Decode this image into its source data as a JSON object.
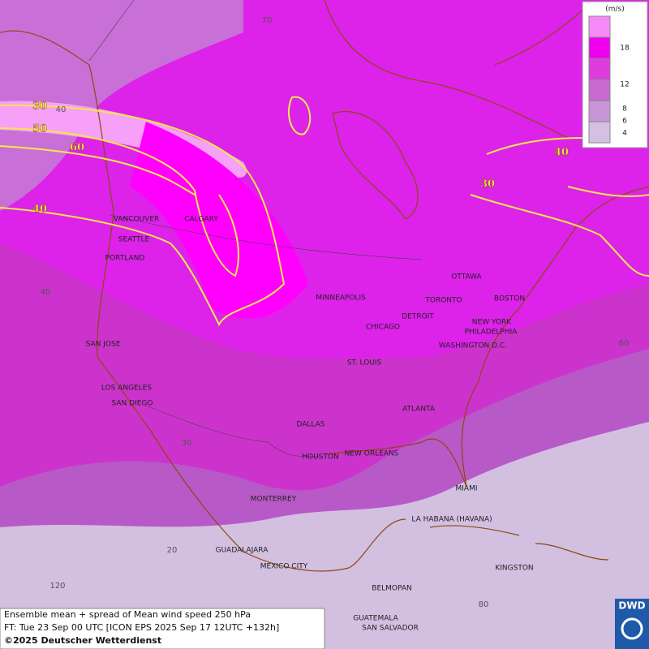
{
  "legend": {
    "unit": "(m/s)",
    "labels": [
      "18",
      "12",
      "8",
      "6",
      "4"
    ]
  },
  "contour_labels": [
    "30",
    "50",
    "60",
    "40",
    "30",
    "40"
  ],
  "grid_labels": [
    "70",
    "40",
    "40",
    "30",
    "20",
    "120",
    "60",
    "80"
  ],
  "cities": [
    "VANCOUVER",
    "CALGARY",
    "SEATTLE",
    "PORTLAND",
    "MINNEAPOLIS",
    "OTTAWA",
    "TORONTO",
    "BOSTON",
    "DETROIT",
    "NEW YORK",
    "PHILADELPHIA",
    "CHICAGO",
    "WASHINGTON D.C.",
    "SAN JOSE",
    "ST. LOUIS",
    "LOS ANGELES",
    "SAN DIEGO",
    "ATLANTA",
    "DALLAS",
    "HOUSTON",
    "NEW ORLEANS",
    "MIAMI",
    "MONTERREY",
    "LA HABANA (HAVANA)",
    "GUADALAJARA",
    "MEXICO CITY",
    "KINGSTON",
    "BELMOPAN",
    "GUATEMALA",
    "SAN SALVADOR"
  ],
  "footer": {
    "line1": "Ensemble mean + spread of Mean wind speed 250 hPa",
    "line2": "FT: Tue 23 Sep 00 UTC [ICON EPS 2025 Sep 17 12UTC +132h]",
    "copyright": "©2025 Deutscher Wetterdienst"
  },
  "logo": "DWD"
}
